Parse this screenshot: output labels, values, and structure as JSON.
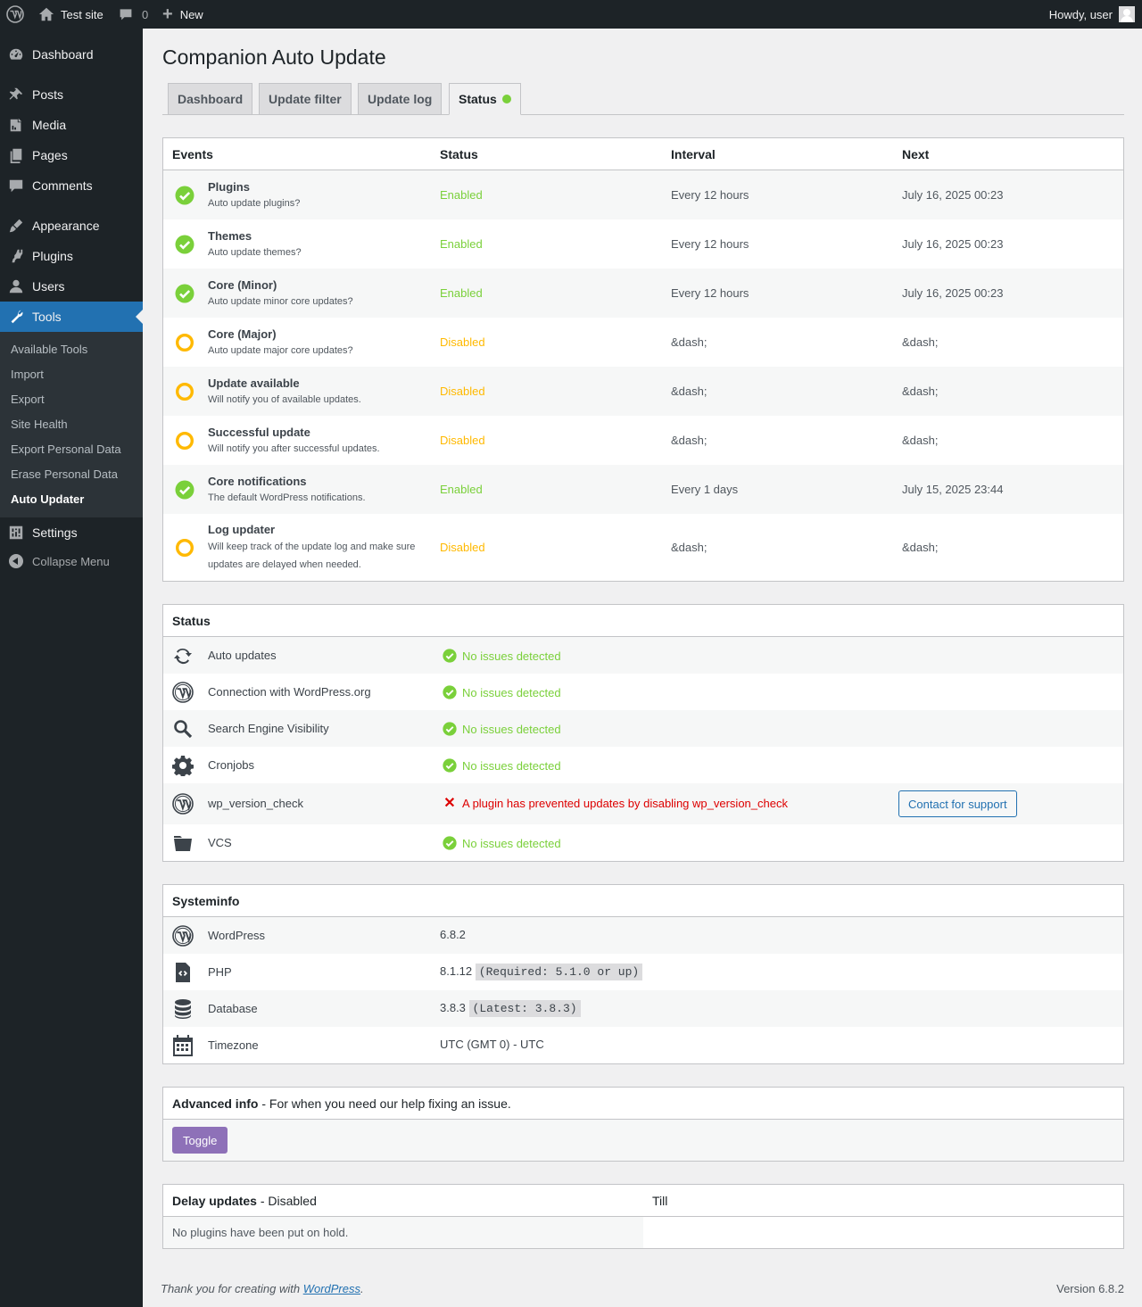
{
  "adminbar": {
    "site_name": "Test site",
    "comments_count": "0",
    "new_label": "New",
    "howdy": "Howdy, user"
  },
  "sidebar": {
    "items": [
      {
        "label": "Dashboard",
        "icon": "dashboard-icon"
      },
      {
        "label": "Posts",
        "icon": "pin-icon"
      },
      {
        "label": "Media",
        "icon": "media-icon"
      },
      {
        "label": "Pages",
        "icon": "pages-icon"
      },
      {
        "label": "Comments",
        "icon": "comment-icon"
      },
      {
        "label": "Appearance",
        "icon": "brush-icon"
      },
      {
        "label": "Plugins",
        "icon": "plugin-icon"
      },
      {
        "label": "Users",
        "icon": "users-icon"
      },
      {
        "label": "Tools",
        "icon": "wrench-icon"
      },
      {
        "label": "Settings",
        "icon": "settings-icon"
      }
    ],
    "submenu": [
      "Available Tools",
      "Import",
      "Export",
      "Site Health",
      "Export Personal Data",
      "Erase Personal Data",
      "Auto Updater"
    ],
    "collapse": "Collapse Menu"
  },
  "page": {
    "title": "Companion Auto Update",
    "tabs": [
      "Dashboard",
      "Update filter",
      "Update log",
      "Status"
    ]
  },
  "events": {
    "headers": [
      "Events",
      "Status",
      "Interval",
      "Next"
    ],
    "rows": [
      {
        "title": "Plugins",
        "desc": "Auto update plugins?",
        "status": "Enabled",
        "interval": "Every 12 hours",
        "next": "July 16, 2025 00:23"
      },
      {
        "title": "Themes",
        "desc": "Auto update themes?",
        "status": "Enabled",
        "interval": "Every 12 hours",
        "next": "July 16, 2025 00:23"
      },
      {
        "title": "Core (Minor)",
        "desc": "Auto update minor core updates?",
        "status": "Enabled",
        "interval": "Every 12 hours",
        "next": "July 16, 2025 00:23"
      },
      {
        "title": "Core (Major)",
        "desc": "Auto update major core updates?",
        "status": "Disabled",
        "interval": "&dash;",
        "next": "&dash;"
      },
      {
        "title": "Update available",
        "desc": "Will notify you of available updates.",
        "status": "Disabled",
        "interval": "&dash;",
        "next": "&dash;"
      },
      {
        "title": "Successful update",
        "desc": "Will notify you after successful updates.",
        "status": "Disabled",
        "interval": "&dash;",
        "next": "&dash;"
      },
      {
        "title": "Core notifications",
        "desc": "The default WordPress notifications.",
        "status": "Enabled",
        "interval": "Every 1 days",
        "next": "July 15, 2025 23:44"
      },
      {
        "title": "Log updater",
        "desc": "Will keep track of the update log and make sure updates are delayed when needed.",
        "status": "Disabled",
        "interval": "&dash;",
        "next": "&dash;"
      }
    ]
  },
  "status": {
    "heading": "Status",
    "rows": [
      {
        "label": "Auto updates",
        "icon": "refresh-icon",
        "result": "No issues detected",
        "ok": true
      },
      {
        "label": "Connection with WordPress.org",
        "icon": "wordpress-icon",
        "result": "No issues detected",
        "ok": true
      },
      {
        "label": "Search Engine Visibility",
        "icon": "search-icon",
        "result": "No issues detected",
        "ok": true
      },
      {
        "label": "Cronjobs",
        "icon": "gear-icon",
        "result": "No issues detected",
        "ok": true
      },
      {
        "label": "wp_version_check",
        "icon": "wordpress-icon",
        "result": "A plugin has prevented updates by disabling wp_version_check",
        "ok": false,
        "button": "Contact for support"
      },
      {
        "label": "VCS",
        "icon": "folder-icon",
        "result": "No issues detected",
        "ok": true
      }
    ]
  },
  "systeminfo": {
    "heading": "Systeminfo",
    "rows": [
      {
        "label": "WordPress",
        "icon": "wordpress-icon",
        "value": "6.8.2",
        "extra": ""
      },
      {
        "label": "PHP",
        "icon": "code-file-icon",
        "value": "8.1.12",
        "extra": "(Required: 5.1.0 or up)"
      },
      {
        "label": "Database",
        "icon": "database-icon",
        "value": "3.8.3",
        "extra": "(Latest: 3.8.3)"
      },
      {
        "label": "Timezone",
        "icon": "calendar-icon",
        "value": "UTC (GMT 0) - UTC",
        "extra": ""
      }
    ]
  },
  "advanced": {
    "heading": "Advanced info",
    "subheading": " - For when you need our help fixing an issue.",
    "toggle": "Toggle"
  },
  "delay": {
    "heading": "Delay updates",
    "state": " - Disabled",
    "till": "Till",
    "empty": "No plugins have been put on hold."
  },
  "footer": {
    "thanks": "Thank you for creating with ",
    "link": "WordPress",
    "period": ".",
    "version": "Version 6.8.2"
  },
  "colors": {
    "enabled": "#7ad03a",
    "disabled": "#ffb900",
    "error": "#dd0000",
    "accent": "#2271b1",
    "toggle": "#8e71b8"
  }
}
